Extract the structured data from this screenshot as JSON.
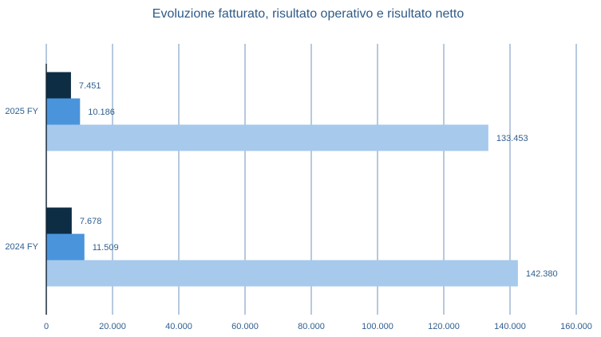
{
  "chart_data": {
    "type": "hbar",
    "title": "Evoluzione fatturato, risultato operativo e risultato netto",
    "categories": [
      "2025 FY",
      "2024 FY"
    ],
    "series": [
      {
        "color": "#0d2d45",
        "values": [
          7451,
          7678
        ],
        "value_labels": [
          "7.451",
          "7.678"
        ]
      },
      {
        "color": "#4a94dc",
        "values": [
          10186,
          11509
        ],
        "value_labels": [
          "10.186",
          "11.509"
        ]
      },
      {
        "color": "#a6c9ec",
        "values": [
          133453,
          142380
        ],
        "value_labels": [
          "133.453",
          "142.380"
        ]
      }
    ],
    "xlim": [
      0,
      160000
    ],
    "xticks": [
      0,
      {
        "value": 20000,
        "label": "20.000"
      },
      {
        "value": 40000,
        "label": "40.000"
      },
      {
        "value": 60000,
        "label": "60.000"
      },
      {
        "value": 80000,
        "label": "80.000"
      },
      {
        "value": 100000,
        "label": "100.000"
      },
      {
        "value": 120000,
        "label": "120.000"
      },
      {
        "value": 140000,
        "label": "140.000"
      },
      {
        "value": 160000,
        "label": "160.000"
      }
    ],
    "grid": true
  }
}
